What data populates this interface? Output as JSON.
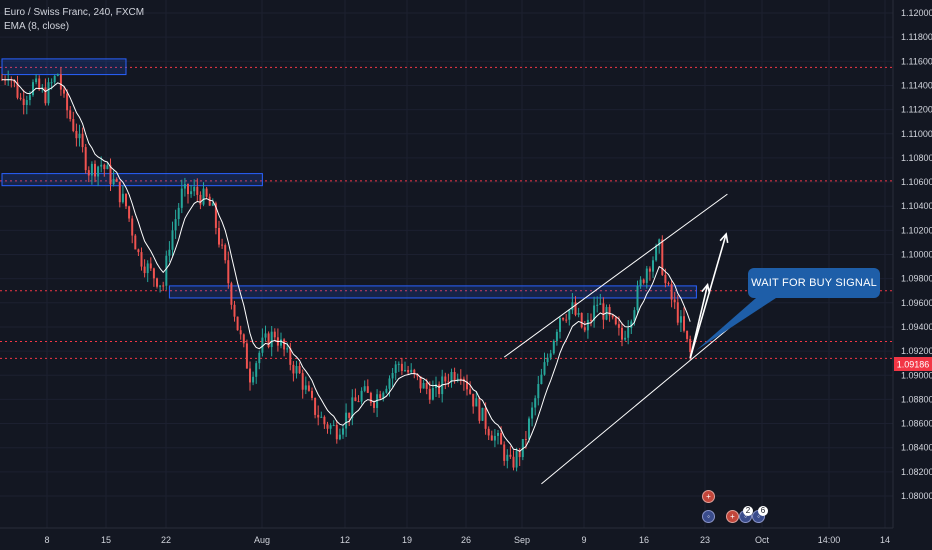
{
  "header": {
    "symbol_line": "Euro / Swiss Franc, 240, FXCM",
    "indicator_line": "EMA (8, close)"
  },
  "annotation": {
    "callout": "WAIT FOR BUY SIGNAL"
  },
  "event_badges": {
    "count_a": "2",
    "count_b": "6"
  },
  "colors": {
    "background": "#131722",
    "up": "#26a69a",
    "down": "#ef5350",
    "zone": "#2962ff",
    "level": "#f23645",
    "callout": "#1e5ea8"
  },
  "chart_data": {
    "type": "candlestick",
    "title": "Euro / Swiss Franc, 240, FXCM",
    "indicator": "EMA (8, close)",
    "ylim": [
      1.079,
      1.121
    ],
    "y_ticks": [
      "1.12000",
      "1.11800",
      "1.11600",
      "1.11400",
      "1.11200",
      "1.11000",
      "1.10800",
      "1.10600",
      "1.10400",
      "1.10200",
      "1.10000",
      "1.09800",
      "1.09600",
      "1.09400",
      "1.09200",
      "1.09000",
      "1.08800",
      "1.08600",
      "1.08400",
      "1.08200",
      "1.08000"
    ],
    "x_ticks": [
      "8",
      "15",
      "22",
      "Aug",
      "12",
      "19",
      "26",
      "Sep",
      "9",
      "16",
      "23",
      "Oct",
      "14:00",
      "14"
    ],
    "last_price": "1.09186",
    "price_path": [
      {
        "t": 0,
        "p": 1.1145
      },
      {
        "t": 1,
        "p": 1.1152
      },
      {
        "t": 3,
        "p": 1.1128
      },
      {
        "t": 5,
        "p": 1.114
      },
      {
        "t": 7,
        "p": 1.1132
      },
      {
        "t": 9,
        "p": 1.115
      },
      {
        "t": 10,
        "p": 1.1126
      },
      {
        "t": 12,
        "p": 1.11
      },
      {
        "t": 14,
        "p": 1.107
      },
      {
        "t": 16,
        "p": 1.1075
      },
      {
        "t": 18,
        "p": 1.106
      },
      {
        "t": 20,
        "p": 1.104
      },
      {
        "t": 22,
        "p": 1.1
      },
      {
        "t": 24,
        "p": 1.0985
      },
      {
        "t": 26,
        "p": 1.0975
      },
      {
        "t": 27,
        "p": 1.101
      },
      {
        "t": 29,
        "p": 1.105
      },
      {
        "t": 31,
        "p": 1.1052
      },
      {
        "t": 33,
        "p": 1.1045
      },
      {
        "t": 34,
        "p": 1.1035
      },
      {
        "t": 36,
        "p": 1.099
      },
      {
        "t": 38,
        "p": 1.094
      },
      {
        "t": 40,
        "p": 1.09
      },
      {
        "t": 42,
        "p": 1.0925
      },
      {
        "t": 44,
        "p": 1.0935
      },
      {
        "t": 46,
        "p": 1.0915
      },
      {
        "t": 48,
        "p": 1.09
      },
      {
        "t": 50,
        "p": 1.0875
      },
      {
        "t": 52,
        "p": 1.086
      },
      {
        "t": 54,
        "p": 1.0855
      },
      {
        "t": 56,
        "p": 1.087
      },
      {
        "t": 58,
        "p": 1.0885
      },
      {
        "t": 60,
        "p": 1.088
      },
      {
        "t": 62,
        "p": 1.0895
      },
      {
        "t": 64,
        "p": 1.091
      },
      {
        "t": 66,
        "p": 1.09
      },
      {
        "t": 68,
        "p": 1.089
      },
      {
        "t": 70,
        "p": 1.0885
      },
      {
        "t": 72,
        "p": 1.09
      },
      {
        "t": 74,
        "p": 1.0905
      },
      {
        "t": 76,
        "p": 1.088
      },
      {
        "t": 78,
        "p": 1.086
      },
      {
        "t": 80,
        "p": 1.0845
      },
      {
        "t": 82,
        "p": 1.0825
      },
      {
        "t": 84,
        "p": 1.084
      },
      {
        "t": 86,
        "p": 1.088
      },
      {
        "t": 88,
        "p": 1.0915
      },
      {
        "t": 90,
        "p": 1.095
      },
      {
        "t": 92,
        "p": 1.0955
      },
      {
        "t": 94,
        "p": 1.0935
      },
      {
        "t": 96,
        "p": 1.096
      },
      {
        "t": 98,
        "p": 1.0945
      },
      {
        "t": 100,
        "p": 1.093
      },
      {
        "t": 102,
        "p": 1.096
      },
      {
        "t": 104,
        "p": 1.099
      },
      {
        "t": 106,
        "p": 1.1005
      },
      {
        "t": 107,
        "p": 1.0975
      },
      {
        "t": 109,
        "p": 1.095
      },
      {
        "t": 111,
        "p": 1.0918
      }
    ],
    "horizontal_levels": [
      1.1155,
      1.1061,
      1.097,
      1.0928,
      1.0914
    ],
    "resistance_zones": [
      {
        "from_t": 0,
        "to_t": 20,
        "top": 1.1162,
        "bottom": 1.1149
      },
      {
        "from_t": 0,
        "to_t": 42,
        "top": 1.1067,
        "bottom": 1.1057
      },
      {
        "from_t": 27,
        "to_t": 112,
        "top": 1.0974,
        "bottom": 1.0964
      }
    ],
    "channel": {
      "upper": [
        {
          "t": 81,
          "p": 1.0915
        },
        {
          "t": 117,
          "p": 1.105
        }
      ],
      "lower": [
        {
          "t": 87,
          "p": 1.081
        },
        {
          "t": 121,
          "p": 1.0955
        }
      ]
    }
  }
}
